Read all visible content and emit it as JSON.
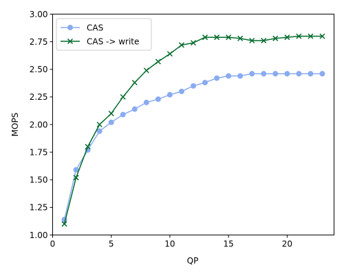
{
  "chart_data": {
    "type": "line",
    "xlabel": "QP",
    "ylabel": "MOPS",
    "xlim": [
      0,
      24
    ],
    "ylim": [
      1.0,
      3.0
    ],
    "x_ticks": [
      0,
      5,
      10,
      15,
      20
    ],
    "y_ticks": [
      1.0,
      1.25,
      1.5,
      1.75,
      2.0,
      2.25,
      2.5,
      2.75,
      3.0
    ],
    "x_tick_labels": [
      "0",
      "5",
      "10",
      "15",
      "20"
    ],
    "y_tick_labels": [
      "1.00",
      "1.25",
      "1.50",
      "1.75",
      "2.00",
      "2.25",
      "2.50",
      "2.75",
      "3.00"
    ],
    "grid": false,
    "legend_position": "top-left",
    "x": [
      1,
      2,
      3,
      4,
      5,
      6,
      7,
      8,
      9,
      10,
      11,
      12,
      13,
      14,
      15,
      16,
      17,
      18,
      19,
      20,
      21,
      22,
      23
    ],
    "series": [
      {
        "name": "CAS",
        "color": "#8aabf0",
        "marker": "circle",
        "values": [
          1.14,
          1.59,
          1.77,
          1.94,
          2.02,
          2.09,
          2.14,
          2.2,
          2.23,
          2.27,
          2.3,
          2.35,
          2.38,
          2.42,
          2.44,
          2.44,
          2.46,
          2.46,
          2.46,
          2.46,
          2.46,
          2.46,
          2.46
        ]
      },
      {
        "name": "CAS -> write",
        "color": "#006a2a",
        "marker": "x",
        "values": [
          1.1,
          1.52,
          1.8,
          2.0,
          2.1,
          2.25,
          2.38,
          2.49,
          2.57,
          2.64,
          2.72,
          2.74,
          2.79,
          2.79,
          2.79,
          2.78,
          2.76,
          2.76,
          2.78,
          2.79,
          2.8,
          2.8,
          2.8
        ]
      }
    ]
  }
}
